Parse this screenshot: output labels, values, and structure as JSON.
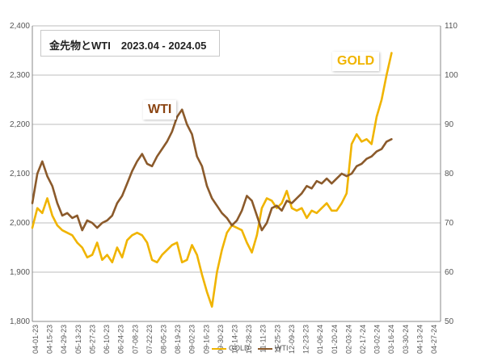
{
  "title": "金先物とWTI　2023.04 - 2024.05",
  "callouts": {
    "wti": "WTI",
    "gold": "GOLD"
  },
  "colors": {
    "gold": "#f0b400",
    "wti": "#8b5a2b",
    "grid": "#bdbdbd",
    "axis": "#888888"
  },
  "chart_data": {
    "type": "line",
    "x_labels": [
      "04-01-23",
      "04-15-23",
      "04-29-23",
      "05-13-23",
      "05-27-23",
      "06-10-23",
      "06-24-23",
      "07-08-23",
      "07-22-23",
      "08-05-23",
      "08-19-23",
      "09-02-23",
      "09-16-23",
      "09-30-23",
      "10-14-23",
      "10-28-23",
      "11-11-23",
      "11-25-23",
      "12-09-23",
      "12-23-23",
      "01-06-24",
      "01-20-24",
      "02-03-24",
      "02-17-24",
      "03-02-24",
      "03-16-24",
      "03-30-24",
      "04-13-24",
      "04-27-24"
    ],
    "y_left": {
      "min": 1800,
      "max": 2400,
      "ticks": [
        "1,800",
        "1,900",
        "2,000",
        "2,100",
        "2,200",
        "2,300",
        "2,400"
      ]
    },
    "y_right": {
      "min": 50,
      "max": 110,
      "ticks": [
        "50",
        "60",
        "70",
        "80",
        "90",
        "100",
        "110"
      ]
    },
    "grid": "horizontal",
    "legend_position": "bottom",
    "series": [
      {
        "name": "GOLD",
        "axis": "left",
        "values": [
          1990,
          2030,
          2020,
          2050,
          2015,
          1995,
          1985,
          1980,
          1975,
          1960,
          1950,
          1930,
          1935,
          1960,
          1925,
          1935,
          1920,
          1950,
          1930,
          1965,
          1975,
          1980,
          1975,
          1960,
          1925,
          1920,
          1935,
          1945,
          1955,
          1960,
          1920,
          1925,
          1955,
          1935,
          1895,
          1860,
          1830,
          1900,
          1945,
          1980,
          1995,
          1990,
          1985,
          1960,
          1940,
          1975,
          2030,
          2050,
          2045,
          2030,
          2040,
          2065,
          2030,
          2025,
          2030,
          2010,
          2025,
          2020,
          2030,
          2040,
          2025,
          2025,
          2040,
          2060,
          2160,
          2180,
          2165,
          2170,
          2160,
          2215,
          2250,
          2300,
          2345
        ]
      },
      {
        "name": "WTI",
        "axis": "left",
        "values": [
          2040,
          2100,
          2125,
          2095,
          2075,
          2040,
          2015,
          2020,
          2010,
          2015,
          1985,
          2005,
          2000,
          1990,
          2000,
          2005,
          2015,
          2040,
          2055,
          2080,
          2105,
          2125,
          2140,
          2120,
          2115,
          2135,
          2150,
          2165,
          2185,
          2215,
          2230,
          2200,
          2180,
          2135,
          2115,
          2075,
          2050,
          2035,
          2020,
          2010,
          1995,
          2005,
          2025,
          2055,
          2045,
          2015,
          1985,
          2000,
          2030,
          2035,
          2025,
          2045,
          2040,
          2050,
          2060,
          2075,
          2070,
          2085,
          2080,
          2090,
          2080,
          2090,
          2100,
          2095,
          2100,
          2115,
          2120,
          2130,
          2135,
          2145,
          2150,
          2165,
          2170
        ]
      }
    ]
  }
}
